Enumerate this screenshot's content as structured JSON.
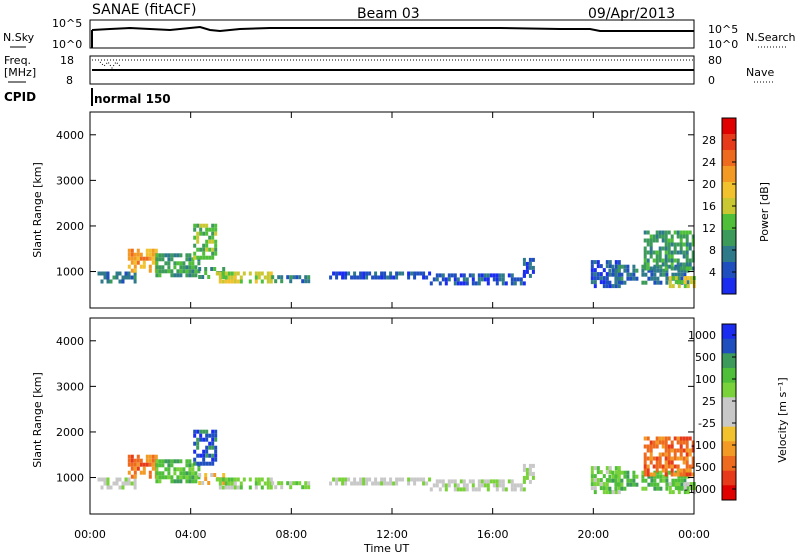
{
  "header": {
    "title": "SANAE (fitACF)",
    "beam": "Beam 03",
    "date": "09/Apr/2013"
  },
  "top_panel": {
    "left_label": "N.Sky",
    "right_label": "N.Search",
    "left_ticks": [
      "10^5",
      "10^0"
    ],
    "right_ticks": [
      "10^5",
      "10^0"
    ]
  },
  "freq_panel": {
    "left_label_1": "Freq.",
    "left_label_2": "[MHz]",
    "right_label": "Nave",
    "left_ticks": [
      "18",
      "8"
    ],
    "right_ticks": [
      "80",
      "0"
    ]
  },
  "cpid": {
    "label": "CPID",
    "mode": "normal 150"
  },
  "x_axis": {
    "title": "Time UT",
    "ticks": [
      "00:00",
      "04:00",
      "08:00",
      "12:00",
      "16:00",
      "20:00",
      "00:00"
    ]
  },
  "chart_data": [
    {
      "type": "heatmap",
      "name": "power",
      "ylabel": "Slant Range [km]",
      "yticks": [
        "1000",
        "2000",
        "3000",
        "4000"
      ],
      "ylim": [
        200,
        4500
      ],
      "xlim_hours": [
        0,
        24
      ],
      "colorbar": {
        "label": "Power [dB]",
        "ticks": [
          "4",
          "8",
          "12",
          "16",
          "20",
          "24",
          "28"
        ],
        "colors": [
          "#1a2cf0",
          "#1f4ebf",
          "#2f7a8a",
          "#3c9a5a",
          "#4fbf3a",
          "#c9c832",
          "#f2c12e",
          "#f39a24",
          "#ee6a1e",
          "#e63a1a",
          "#e00000"
        ]
      },
      "patches": [
        {
          "t": [
            0.3,
            1.8
          ],
          "r": [
            780,
            1000
          ],
          "level": 2
        },
        {
          "t": [
            1.5,
            2.6
          ],
          "r": [
            1000,
            1500
          ],
          "level": 7
        },
        {
          "t": [
            2.6,
            4.3
          ],
          "r": [
            880,
            1400
          ],
          "level": 3
        },
        {
          "t": [
            4.1,
            5.0
          ],
          "r": [
            1300,
            2050
          ],
          "level": 4
        },
        {
          "t": [
            4.3,
            5.3
          ],
          "r": [
            880,
            1100
          ],
          "level": 3
        },
        {
          "t": [
            5.0,
            7.2
          ],
          "r": [
            760,
            1000
          ],
          "level": 5
        },
        {
          "t": [
            7.2,
            8.8
          ],
          "r": [
            760,
            920
          ],
          "level": 2
        },
        {
          "t": [
            9.5,
            13.5
          ],
          "r": [
            880,
            1000
          ],
          "level": 1
        },
        {
          "t": [
            13.5,
            17.2
          ],
          "r": [
            760,
            960
          ],
          "level": 1
        },
        {
          "t": [
            17.2,
            17.6
          ],
          "r": [
            880,
            1300
          ],
          "level": 1
        },
        {
          "t": [
            19.9,
            21.0
          ],
          "r": [
            700,
            1250
          ],
          "level": 1
        },
        {
          "t": [
            20.6,
            23.8
          ],
          "r": [
            760,
            1150
          ],
          "level": 2
        },
        {
          "t": [
            22.0,
            24.0
          ],
          "r": [
            1100,
            1900
          ],
          "level": 3
        },
        {
          "t": [
            23.0,
            24.0
          ],
          "r": [
            700,
            900
          ],
          "level": 5
        }
      ]
    },
    {
      "type": "heatmap",
      "name": "velocity",
      "ylabel": "Slant Range [km]",
      "yticks": [
        "1000",
        "2000",
        "3000",
        "4000"
      ],
      "ylim": [
        200,
        4500
      ],
      "xlim_hours": [
        0,
        24
      ],
      "colorbar": {
        "label": "Velocity [m s⁻¹]",
        "ticks": [
          "1000",
          "500",
          "100",
          "25",
          "-25",
          "-100",
          "-500",
          "-1000"
        ],
        "colors": [
          "#1a2cf0",
          "#1f4ebf",
          "#3c9a5a",
          "#4fbf3a",
          "#7ad23a",
          "#c8c8c8",
          "#c8c8c8",
          "#f2c12e",
          "#f39a24",
          "#ee6a1e",
          "#e63a1a",
          "#e00000"
        ]
      },
      "patches": [
        {
          "t": [
            0.3,
            1.8
          ],
          "r": [
            780,
            1000
          ],
          "level": 5
        },
        {
          "t": [
            1.5,
            2.6
          ],
          "r": [
            1000,
            1500
          ],
          "level": 9
        },
        {
          "t": [
            2.6,
            4.3
          ],
          "r": [
            880,
            1400
          ],
          "level": 3
        },
        {
          "t": [
            4.1,
            5.0
          ],
          "r": [
            1300,
            2050
          ],
          "level": 1
        },
        {
          "t": [
            4.3,
            5.3
          ],
          "r": [
            880,
            1100
          ],
          "level": 7
        },
        {
          "t": [
            5.0,
            7.2
          ],
          "r": [
            760,
            1000
          ],
          "level": 4
        },
        {
          "t": [
            7.2,
            8.8
          ],
          "r": [
            760,
            920
          ],
          "level": 4
        },
        {
          "t": [
            9.5,
            13.5
          ],
          "r": [
            880,
            1000
          ],
          "level": 5
        },
        {
          "t": [
            13.5,
            17.2
          ],
          "r": [
            760,
            960
          ],
          "level": 5
        },
        {
          "t": [
            17.2,
            17.6
          ],
          "r": [
            880,
            1300
          ],
          "level": 5
        },
        {
          "t": [
            19.9,
            21.0
          ],
          "r": [
            700,
            1250
          ],
          "level": 4
        },
        {
          "t": [
            20.6,
            23.8
          ],
          "r": [
            760,
            1150
          ],
          "level": 3
        },
        {
          "t": [
            22.0,
            24.0
          ],
          "r": [
            1100,
            1900
          ],
          "level": 9
        },
        {
          "t": [
            23.0,
            24.0
          ],
          "r": [
            700,
            900
          ],
          "level": 4
        }
      ]
    }
  ]
}
